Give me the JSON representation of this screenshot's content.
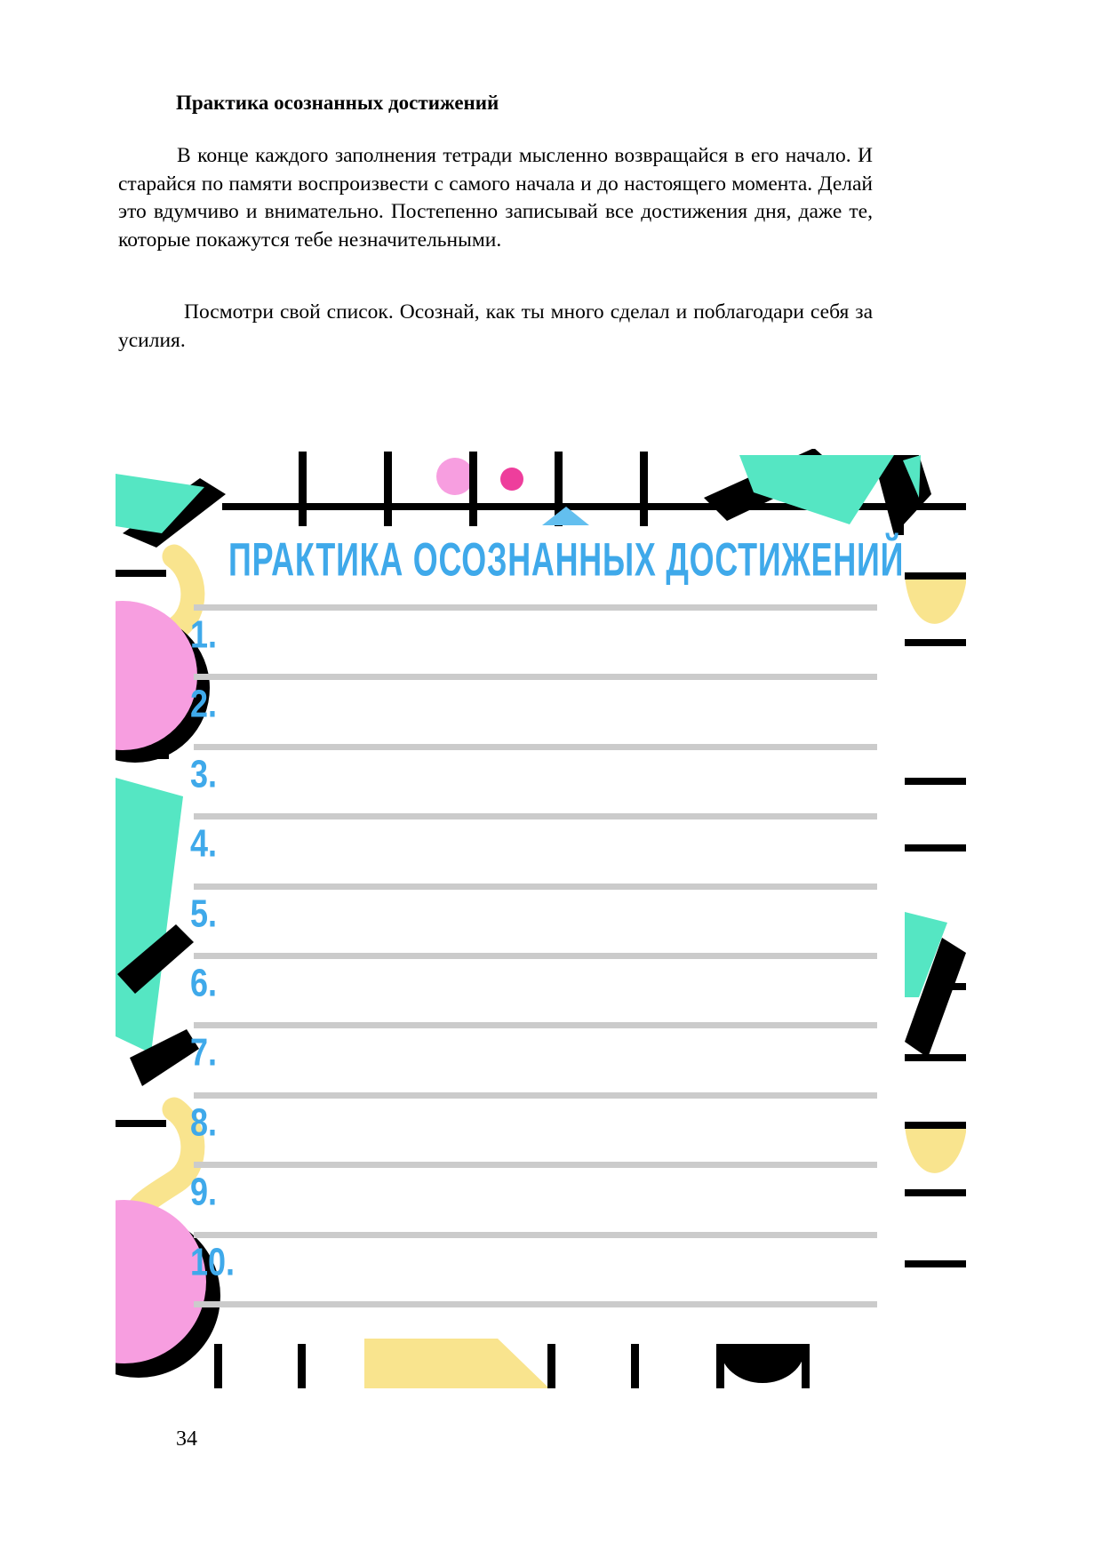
{
  "document": {
    "heading": "Практика осознанных достижений",
    "paragraphs": [
      "В конце каждого заполнения тетради мысленно возвращайся в его начало. И старайся по памяти воспроизвести с самого начала и до настоящего момента. Делай это вдумчиво и внимательно. Постепенно записывай все достижения дня, даже те, которые покажутся тебе незначительными.",
      "Посмотри свой список. Осознай, как ты много сделал и поблагодари себя за усилия."
    ],
    "page_number": "34"
  },
  "worksheet": {
    "title": "ПРАКТИКА ОСОЗНАННЫХ ДОСТИЖЕНИЙ",
    "items": [
      "1.",
      "2.",
      "3.",
      "4.",
      "5.",
      "6.",
      "7.",
      "8.",
      "9.",
      "10."
    ]
  },
  "colors": {
    "blue": "#3fa9ea",
    "teal": "#55e6c3",
    "pink": "#f79ee0",
    "magenta": "#ee3e9c",
    "yellow": "#f9e48e",
    "sky": "#63bfef",
    "grayline": "#cbcbcb",
    "ink": "#000000"
  }
}
